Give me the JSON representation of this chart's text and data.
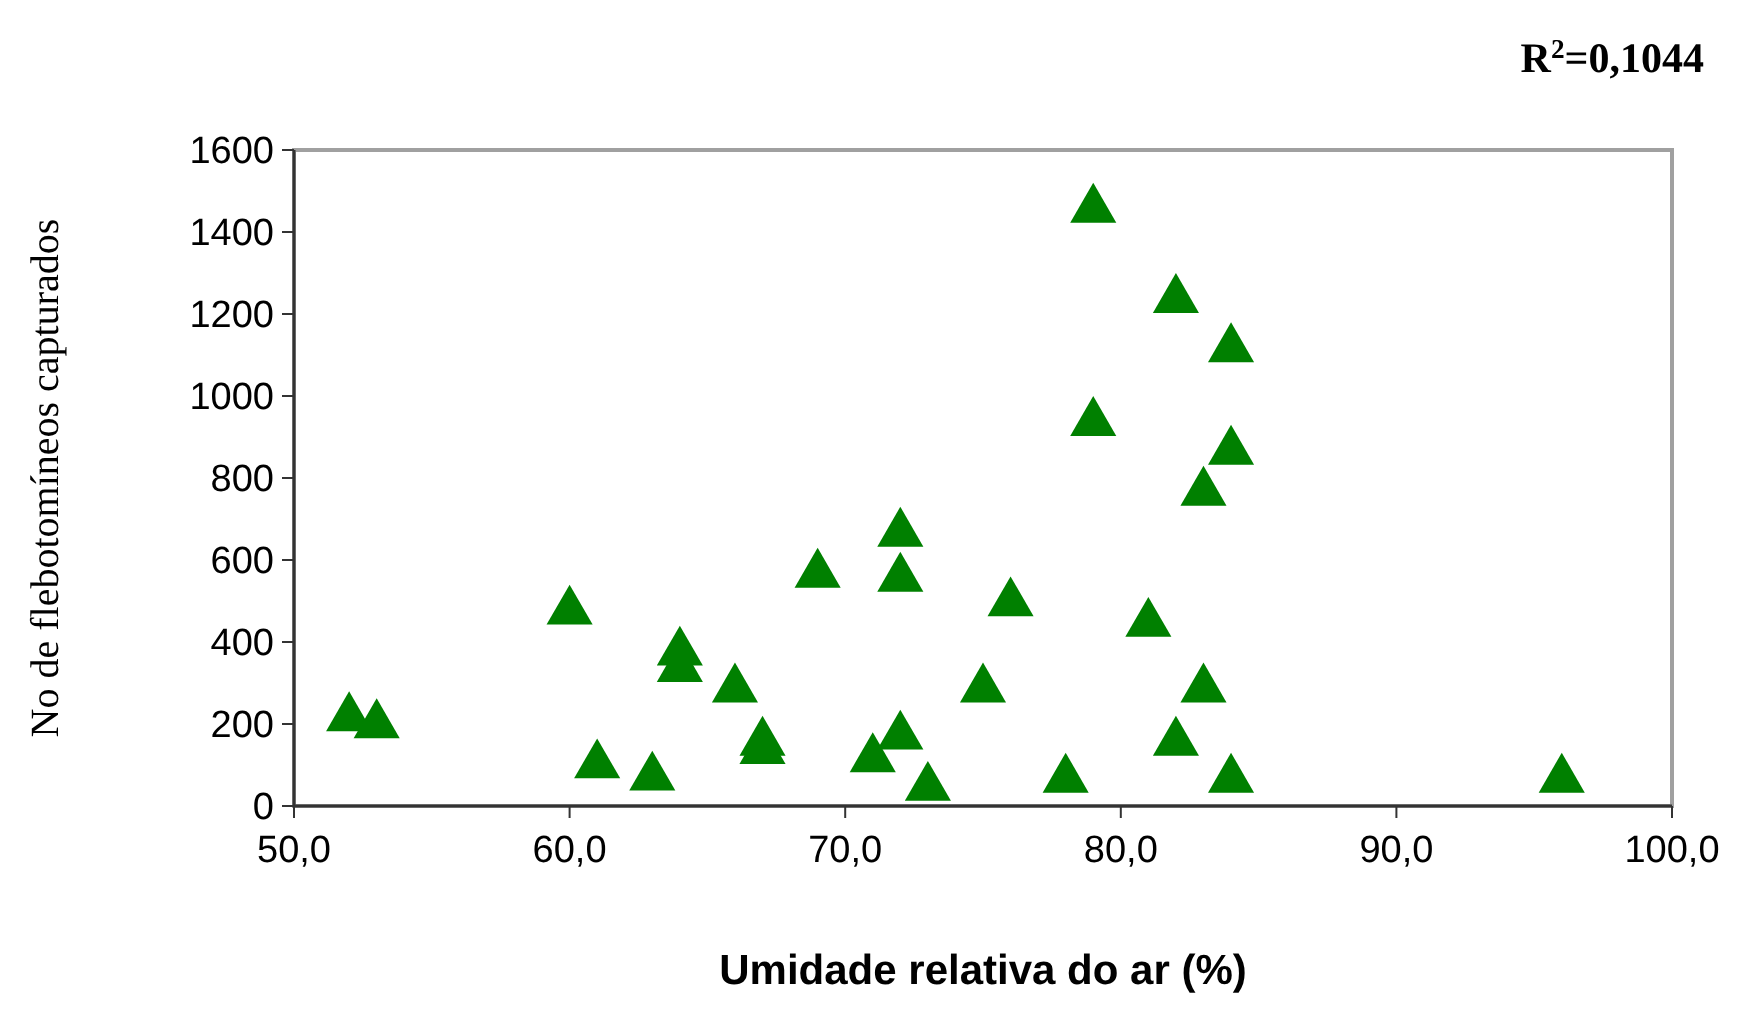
{
  "chart_data": {
    "type": "scatter",
    "xlabel": "Umidade relativa do ar (%)",
    "ylabel": "No de flebotomíneos capturados",
    "annotations": [
      "R$^{2}$=0,1044"
    ],
    "x": [
      52,
      53,
      60,
      61,
      63,
      64,
      64,
      66,
      67,
      67,
      69,
      71,
      72,
      72,
      72,
      73,
      75,
      76,
      78,
      79,
      79,
      81,
      82,
      82,
      83,
      83,
      84,
      84,
      84,
      96
    ],
    "values": [
      215,
      198,
      475,
      100,
      70,
      375,
      335,
      285,
      155,
      135,
      565,
      115,
      665,
      555,
      170,
      45,
      285,
      495,
      65,
      1455,
      935,
      445,
      1235,
      155,
      765,
      285,
      1115,
      865,
      65,
      65
    ],
    "color": "#008000",
    "marker": "triangle",
    "grid": false,
    "xlim": [
      50,
      100
    ],
    "xticks": [
      {
        "value": 50,
        "label": "50,0"
      },
      {
        "value": 60,
        "label": "60,0"
      },
      {
        "value": 70,
        "label": "70,0"
      },
      {
        "value": 80,
        "label": "80,0"
      },
      {
        "value": 90,
        "label": "90,0"
      },
      {
        "value": 100,
        "label": "100,0"
      }
    ],
    "ylim": [
      0,
      1600
    ],
    "yticks": [
      0,
      200,
      400,
      600,
      800,
      1000,
      1200,
      1400,
      1600
    ]
  }
}
